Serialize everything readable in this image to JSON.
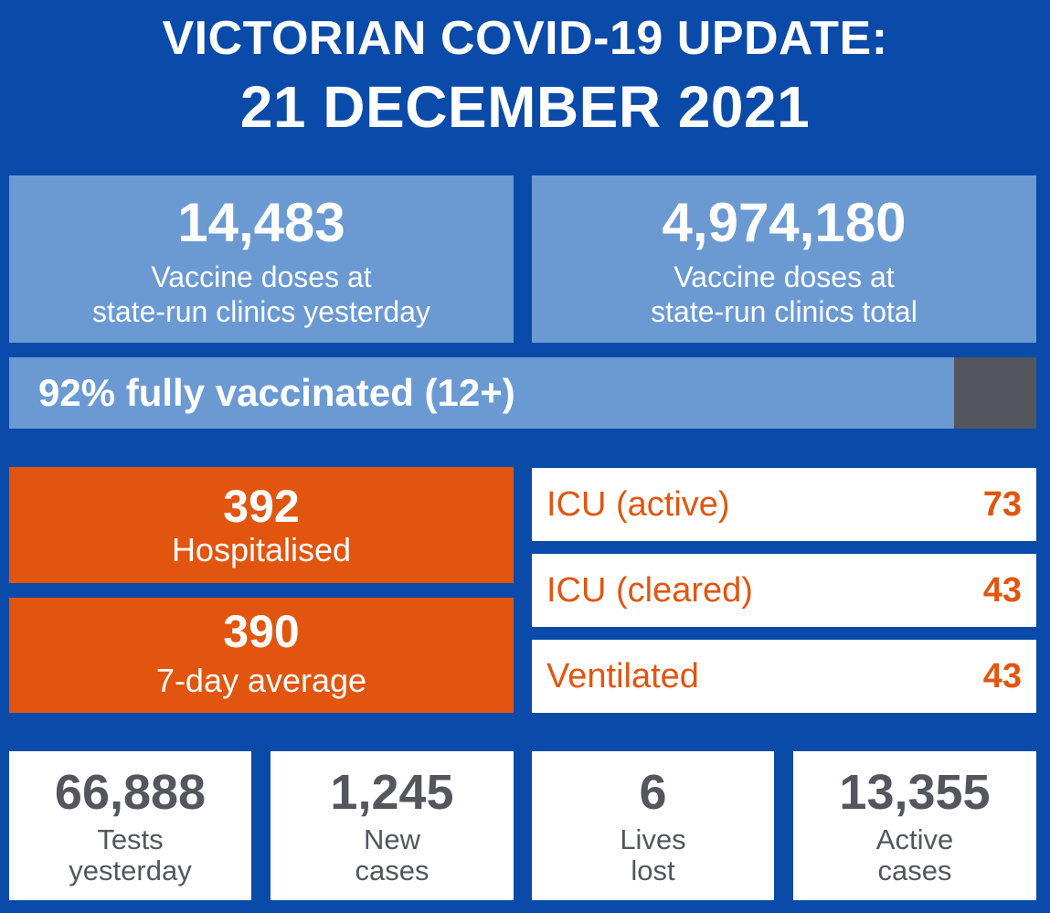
{
  "header": {
    "line1": "VICTORIAN COVID-19 UPDATE:",
    "line2": "21 DECEMBER 2021"
  },
  "doses": [
    {
      "value": "14,483",
      "label_line1": "Vaccine doses at",
      "label_line2": "state-run clinics yesterday"
    },
    {
      "value": "4,974,180",
      "label_line1": "Vaccine doses at",
      "label_line2": "state-run clinics total"
    }
  ],
  "vaccination": {
    "text": "92% fully vaccinated (12+)",
    "percent": 92
  },
  "hospital": {
    "hospitalised_value": "392",
    "hospitalised_label": "Hospitalised",
    "average_value": "390",
    "average_label": "7-day average"
  },
  "icu": [
    {
      "label": "ICU (active)",
      "value": "73"
    },
    {
      "label": "ICU (cleared)",
      "value": "43"
    },
    {
      "label": "Ventilated",
      "value": "43"
    }
  ],
  "stats": [
    {
      "value": "66,888",
      "label_line1": "Tests",
      "label_line2": "yesterday"
    },
    {
      "value": "1,245",
      "label_line1": "New",
      "label_line2": "cases"
    },
    {
      "value": "6",
      "label_line1": "Lives",
      "label_line2": "lost"
    },
    {
      "value": "13,355",
      "label_line1": "Active",
      "label_line2": "cases"
    }
  ],
  "colors": {
    "background": "#0a4aa8",
    "light_blue": "#6b9ad3",
    "orange": "#e2550f",
    "grey": "#53565c",
    "white": "#ffffff"
  }
}
